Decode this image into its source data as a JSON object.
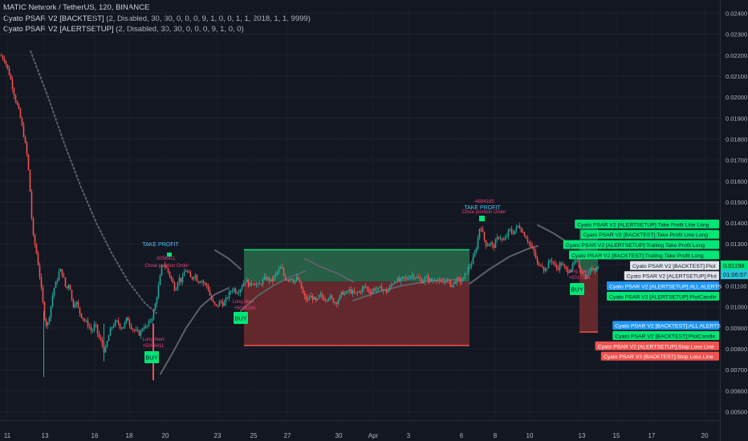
{
  "symbol_line": "MATIC Network / TetherUS, 120, BINANCE",
  "indicators": [
    {
      "name": "Cyato PSAR V2 [BACKTEST]",
      "params": "(2, Disabled, 30, 30, 0, 0, 0, 9, 1, 0, 0, 1, 1, 2018, 1, 1, 9999)"
    },
    {
      "name": "Cyato PSAR V2 [ALERTSETUP]",
      "params": "(2, Disabled, 30, 30, 0, 0, 0, 9, 1, 0, 0)"
    }
  ],
  "colors": {
    "background": "#131722",
    "bull": "#26a69a",
    "bull_bright": "#00e676",
    "bear": "#ef5350",
    "profit_zone": "#2a6b4c",
    "loss_zone": "#6b2a2e",
    "psar_line": "#5d606b",
    "accent_blue": "#2196f3",
    "take_profit_text": "#4fc3f7",
    "order_text": "#ec407a"
  },
  "chart_data": {
    "type": "candlestick",
    "y_axis": {
      "ticks": [
        "0.02400",
        "0.02300",
        "0.02200",
        "0.02100",
        "0.02000",
        "0.01900",
        "0.01800",
        "0.01700",
        "0.01600",
        "0.01500",
        "0.01400",
        "0.01300",
        "0.01200",
        "0.01100",
        "0.01000",
        "0.00900",
        "0.00800",
        "0.00700",
        "0.00600",
        "0.00500"
      ],
      "ylim": [
        0.00475,
        0.02425
      ],
      "price_labels": [
        {
          "text": "0.01198",
          "value": 0.01198,
          "color": "#00e676"
        },
        {
          "text": "01:06:57",
          "value": 0.01155,
          "color": "#26c6da"
        }
      ]
    },
    "x_axis": {
      "ticks": [
        "11",
        "13",
        "16",
        "18",
        "20",
        "23",
        "25",
        "27",
        "30",
        "Apr",
        "3",
        "6",
        "8",
        "10",
        "13",
        "15",
        "17",
        "20"
      ]
    },
    "price_path": [
      [
        0,
        0.022
      ],
      [
        5,
        0.0218
      ],
      [
        12,
        0.021
      ],
      [
        18,
        0.02
      ],
      [
        24,
        0.0192
      ],
      [
        30,
        0.018
      ],
      [
        34,
        0.017
      ],
      [
        38,
        0.015
      ],
      [
        40,
        0.0135
      ],
      [
        44,
        0.0128
      ],
      [
        48,
        0.0118
      ],
      [
        52,
        0.0105
      ],
      [
        55,
        0.0095
      ],
      [
        58,
        0.009
      ],
      [
        62,
        0.0098
      ],
      [
        66,
        0.0108
      ],
      [
        70,
        0.0112
      ],
      [
        74,
        0.0118
      ],
      [
        78,
        0.0115
      ],
      [
        82,
        0.0108
      ],
      [
        86,
        0.0112
      ],
      [
        90,
        0.01
      ],
      [
        94,
        0.0103
      ],
      [
        98,
        0.0098
      ],
      [
        102,
        0.0095
      ],
      [
        106,
        0.0093
      ],
      [
        110,
        0.0091
      ],
      [
        114,
        0.0088
      ],
      [
        118,
        0.0092
      ],
      [
        122,
        0.0086
      ],
      [
        126,
        0.0083
      ],
      [
        130,
        0.0078
      ],
      [
        134,
        0.0085
      ],
      [
        138,
        0.009
      ],
      [
        142,
        0.0092
      ],
      [
        146,
        0.0093
      ],
      [
        150,
        0.009
      ],
      [
        154,
        0.0091
      ],
      [
        158,
        0.0095
      ],
      [
        162,
        0.0091
      ],
      [
        166,
        0.0089
      ],
      [
        170,
        0.0088
      ],
      [
        174,
        0.0087
      ],
      [
        178,
        0.0091
      ],
      [
        182,
        0.009
      ],
      [
        186,
        0.0093
      ],
      [
        190,
        0.0096
      ],
      [
        194,
        0.0103
      ],
      [
        198,
        0.0112
      ],
      [
        202,
        0.0121
      ],
      [
        206,
        0.0119
      ],
      [
        210,
        0.0116
      ],
      [
        214,
        0.0112
      ],
      [
        218,
        0.0108
      ],
      [
        222,
        0.0114
      ],
      [
        226,
        0.0112
      ],
      [
        230,
        0.0118
      ],
      [
        234,
        0.0116
      ],
      [
        238,
        0.0113
      ],
      [
        242,
        0.0116
      ],
      [
        246,
        0.0112
      ],
      [
        250,
        0.0113
      ],
      [
        254,
        0.0111
      ],
      [
        258,
        0.011
      ],
      [
        262,
        0.0104
      ],
      [
        266,
        0.0101
      ],
      [
        270,
        0.01
      ],
      [
        274,
        0.0103
      ],
      [
        278,
        0.0101
      ],
      [
        282,
        0.0104
      ],
      [
        286,
        0.0107
      ],
      [
        290,
        0.0109
      ],
      [
        294,
        0.0107
      ],
      [
        298,
        0.0108
      ],
      [
        302,
        0.0111
      ],
      [
        306,
        0.0113
      ],
      [
        310,
        0.011
      ],
      [
        314,
        0.0112
      ],
      [
        318,
        0.0111
      ],
      [
        322,
        0.011
      ],
      [
        326,
        0.0112
      ],
      [
        330,
        0.0114
      ],
      [
        334,
        0.0113
      ],
      [
        338,
        0.0112
      ],
      [
        342,
        0.0115
      ],
      [
        346,
        0.0117
      ],
      [
        350,
        0.0119
      ],
      [
        354,
        0.0114
      ],
      [
        358,
        0.0113
      ],
      [
        362,
        0.0114
      ],
      [
        366,
        0.0112
      ],
      [
        370,
        0.0114
      ],
      [
        374,
        0.011
      ],
      [
        378,
        0.0105
      ],
      [
        382,
        0.0103
      ],
      [
        386,
        0.0105
      ],
      [
        390,
        0.0104
      ],
      [
        394,
        0.0102
      ],
      [
        398,
        0.0106
      ],
      [
        402,
        0.0104
      ],
      [
        406,
        0.0104
      ],
      [
        410,
        0.0105
      ],
      [
        414,
        0.0103
      ],
      [
        418,
        0.0102
      ],
      [
        422,
        0.0104
      ],
      [
        426,
        0.0107
      ],
      [
        430,
        0.0106
      ],
      [
        434,
        0.0108
      ],
      [
        438,
        0.0107
      ],
      [
        442,
        0.0106
      ],
      [
        446,
        0.0107
      ],
      [
        450,
        0.0108
      ],
      [
        454,
        0.011
      ],
      [
        458,
        0.0108
      ],
      [
        462,
        0.0107
      ],
      [
        466,
        0.0109
      ],
      [
        470,
        0.0108
      ],
      [
        474,
        0.0109
      ],
      [
        478,
        0.0108
      ],
      [
        482,
        0.0107
      ],
      [
        486,
        0.011
      ],
      [
        490,
        0.0112
      ],
      [
        494,
        0.0113
      ],
      [
        498,
        0.0112
      ],
      [
        502,
        0.0114
      ],
      [
        506,
        0.0113
      ],
      [
        510,
        0.0115
      ],
      [
        514,
        0.0115
      ],
      [
        518,
        0.0114
      ],
      [
        522,
        0.0113
      ],
      [
        526,
        0.0112
      ],
      [
        530,
        0.0114
      ],
      [
        534,
        0.0113
      ],
      [
        538,
        0.0112
      ],
      [
        542,
        0.0114
      ],
      [
        546,
        0.0112
      ],
      [
        550,
        0.0111
      ],
      [
        554,
        0.0113
      ],
      [
        558,
        0.0112
      ],
      [
        562,
        0.011
      ],
      [
        566,
        0.0112
      ],
      [
        570,
        0.0113
      ],
      [
        574,
        0.0112
      ],
      [
        578,
        0.0114
      ],
      [
        582,
        0.0118
      ],
      [
        586,
        0.012
      ],
      [
        590,
        0.0124
      ],
      [
        594,
        0.013
      ],
      [
        598,
        0.014
      ],
      [
        602,
        0.0133
      ],
      [
        606,
        0.0129
      ],
      [
        610,
        0.0131
      ],
      [
        614,
        0.0128
      ],
      [
        618,
        0.0132
      ],
      [
        622,
        0.0134
      ],
      [
        626,
        0.0131
      ],
      [
        630,
        0.0133
      ],
      [
        634,
        0.0137
      ],
      [
        638,
        0.0135
      ],
      [
        642,
        0.0137
      ],
      [
        646,
        0.0139
      ],
      [
        650,
        0.0136
      ],
      [
        654,
        0.0134
      ],
      [
        658,
        0.0131
      ],
      [
        662,
        0.0128
      ],
      [
        666,
        0.0125
      ],
      [
        670,
        0.0119
      ],
      [
        674,
        0.0121
      ],
      [
        678,
        0.0117
      ],
      [
        682,
        0.012
      ],
      [
        686,
        0.0123
      ],
      [
        690,
        0.012
      ],
      [
        694,
        0.0118
      ],
      [
        698,
        0.0121
      ],
      [
        702,
        0.0119
      ],
      [
        706,
        0.0117
      ],
      [
        710,
        0.0118
      ],
      [
        714,
        0.012
      ],
      [
        718,
        0.0123
      ],
      [
        722,
        0.0118
      ],
      [
        726,
        0.0116
      ],
      [
        730,
        0.0114
      ],
      [
        734,
        0.0117
      ],
      [
        738,
        0.0119
      ],
      [
        742,
        0.0118
      ],
      [
        746,
        0.012
      ]
    ],
    "chart_labels": {
      "take_profit": "TAKE PROFIT",
      "close_position": "Close position Order",
      "long_alert": "Long Alert",
      "buy": "BUY",
      "tp_values": [
        "-5056411",
        "-4894165"
      ],
      "entry_values": [
        "+5056411",
        "+5096165",
        "+5017598"
      ]
    },
    "right_labels": [
      {
        "text": "Cyato PSAR V2 [ALERTSETUP]:Take Profit Line Long",
        "bg": "#00e676",
        "fg": "#131722",
        "value": 0.01395
      },
      {
        "text": "Cyato PSAR V2 [BACKTEST]:Take Profit Line Long",
        "bg": "#00e676",
        "fg": "#131722",
        "value": 0.01346
      },
      {
        "text": "Cyato PSAR V2 [ALERTSETUP]:Trailing Take Profit Long",
        "bg": "#00e676",
        "fg": "#131722",
        "value": 0.01297
      },
      {
        "text": "Cyato PSAR V2 [BACKTEST]:Trailing Take Profit Long",
        "bg": "#00e676",
        "fg": "#131722",
        "value": 0.01248
      },
      {
        "text": "Cyato PSAR V2 [BACKTEST]:Plot",
        "bg": "#e0e3eb",
        "fg": "#131722",
        "value": 0.01197
      },
      {
        "text": "Cyato PSAR V2 [ALERTSETUP]:Plot",
        "bg": "#e0e3eb",
        "fg": "#131722",
        "value": 0.01149
      },
      {
        "text": "Cyato PSAR V2 [ALERTSETUP]:ALL ALERTS",
        "bg": "#2196f3",
        "fg": "#ffffff",
        "value": 0.011
      },
      {
        "text": "Cyato PSAR V2 [ALERTSETUP]:PlotCandle",
        "bg": "#00e676",
        "fg": "#131722",
        "value": 0.01051
      },
      {
        "text": "Cyato PSAR V2 [BACKTEST]:ALL ALERTS",
        "bg": "#2196f3",
        "fg": "#ffffff",
        "value": 0.00912
      },
      {
        "text": "Cyato PSAR V2 [BACKTEST]:PlotCandle",
        "bg": "#00e676",
        "fg": "#131722",
        "value": 0.00863
      },
      {
        "text": "Cyato PSAR V2 [ALERTSETUP]:Stop Loss Line",
        "bg": "#ef5350",
        "fg": "#ffffff",
        "value": 0.00814
      },
      {
        "text": "Cyato PSAR V2 [BACKTEST]:Stop Loss Line",
        "bg": "#ef5350",
        "fg": "#ffffff",
        "value": 0.00765
      }
    ]
  }
}
